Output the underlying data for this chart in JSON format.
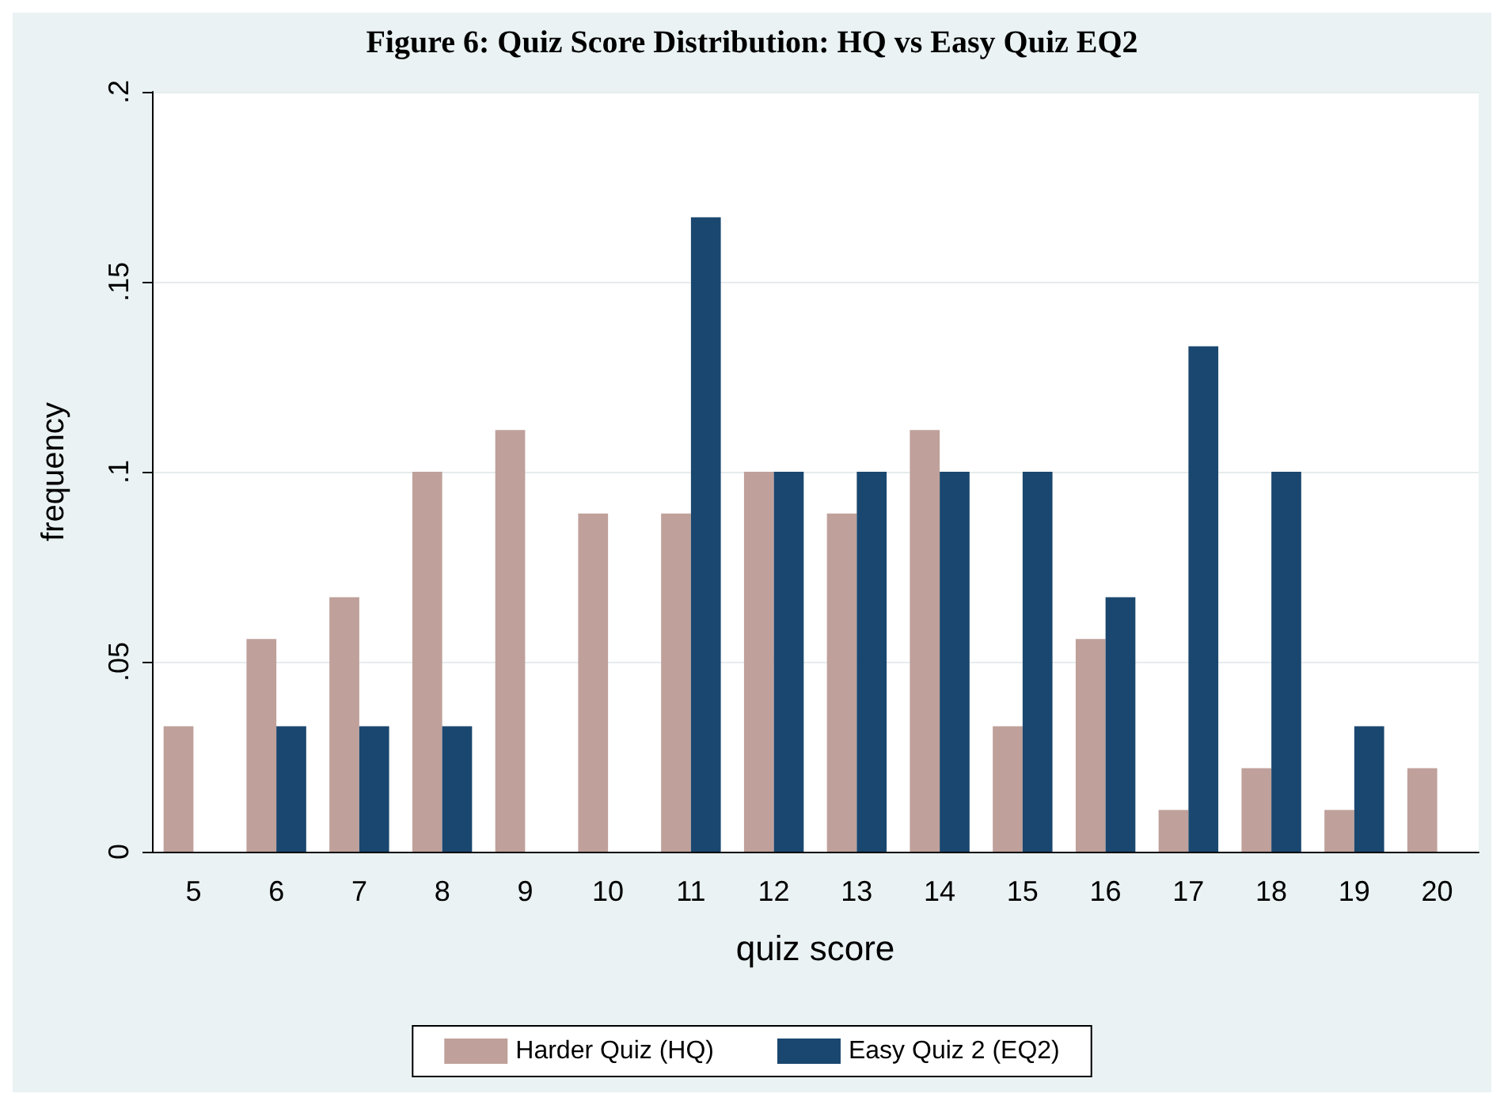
{
  "chart_data": {
    "type": "bar",
    "title": "Figure 6: Quiz Score Distribution: HQ vs Easy Quiz EQ2",
    "xlabel": "quiz score",
    "ylabel": "frequency",
    "categories": [
      "5",
      "6",
      "7",
      "8",
      "9",
      "10",
      "11",
      "12",
      "13",
      "14",
      "15",
      "16",
      "17",
      "18",
      "19",
      "20"
    ],
    "series": [
      {
        "name": "Harder Quiz (HQ)",
        "color": "#bfa09a",
        "values": [
          0.033,
          0.056,
          0.067,
          0.1,
          0.111,
          0.089,
          0.089,
          0.1,
          0.089,
          0.111,
          0.033,
          0.056,
          0.011,
          0.022,
          0.011,
          0.022
        ]
      },
      {
        "name": "Easy Quiz 2 (EQ2)",
        "color": "#1a476f",
        "values": [
          0,
          0.033,
          0.033,
          0.033,
          0,
          0,
          0.167,
          0.1,
          0.1,
          0.1,
          0.1,
          0.067,
          0.133,
          0.1,
          0.033,
          0
        ]
      }
    ],
    "ylim": [
      0,
      0.2
    ],
    "yticks": [
      {
        "value": 0,
        "label": "0"
      },
      {
        "value": 0.05,
        "label": ".05"
      },
      {
        "value": 0.1,
        "label": ".1"
      },
      {
        "value": 0.15,
        "label": ".15"
      },
      {
        "value": 0.2,
        "label": ".2"
      }
    ],
    "grid": "y",
    "legend": "bottom"
  }
}
